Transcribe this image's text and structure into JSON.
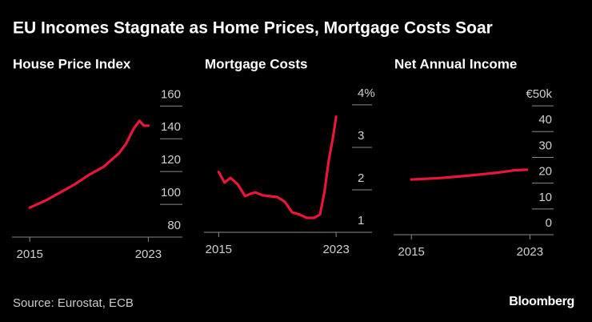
{
  "title": "EU Incomes Stagnate as Home Prices, Mortgage Costs Soar",
  "source": "Source: Eurostat, ECB",
  "brand": "Bloomberg",
  "chart_data": [
    {
      "type": "line",
      "title": "House Price Index",
      "x": [
        2015,
        2016,
        2017,
        2018,
        2019,
        2020,
        2021,
        2021.5,
        2022,
        2022.4,
        2022.7,
        2023
      ],
      "series": [
        {
          "name": "House Price Index",
          "color": "#e8173a",
          "values": [
            98,
            102,
            107,
            112,
            118,
            123,
            131,
            137,
            146,
            151,
            148,
            148
          ]
        }
      ],
      "xlim": [
        2013.8,
        2025.3
      ],
      "xticks": [
        2015,
        2023
      ],
      "ylim": [
        80,
        168
      ],
      "yticks": [
        80,
        100,
        120,
        140,
        160
      ]
    },
    {
      "type": "line",
      "title": "Mortgage Costs",
      "x": [
        2015,
        2015.4,
        2015.8,
        2016.3,
        2016.8,
        2017.1,
        2017.5,
        2018,
        2019,
        2019.5,
        2020,
        2020.5,
        2021,
        2021.5,
        2021.9,
        2022.2,
        2022.5,
        2022.8,
        2023
      ],
      "series": [
        {
          "name": "Mortgage Costs",
          "color": "#e8173a",
          "values": [
            2.42,
            2.17,
            2.28,
            2.13,
            1.85,
            1.9,
            1.94,
            1.87,
            1.83,
            1.72,
            1.47,
            1.42,
            1.34,
            1.34,
            1.42,
            1.94,
            2.7,
            3.26,
            3.72
          ]
        }
      ],
      "xlim": [
        2014,
        2024.9
      ],
      "xticks": [
        2015,
        2023
      ],
      "ylim": [
        1,
        4.3
      ],
      "yticks": [
        1,
        2,
        3,
        {
          "value": 4,
          "label": "4%"
        }
      ]
    },
    {
      "type": "line",
      "title": "Net Annual Income",
      "x": [
        2015,
        2016,
        2017,
        2018,
        2019,
        2020,
        2021,
        2022,
        2022.8
      ],
      "series": [
        {
          "name": "Net Annual Income",
          "color": "#e8173a",
          "values": [
            21.4,
            21.7,
            22,
            22.5,
            23,
            23.6,
            24.2,
            25,
            25.2
          ]
        }
      ],
      "xlim": [
        2013.8,
        2024.6
      ],
      "xticks": [
        2015,
        2023
      ],
      "ylim": [
        0,
        55
      ],
      "yticks": [
        0,
        10,
        20,
        30,
        40,
        {
          "value": 50,
          "label": "€50k"
        }
      ]
    }
  ]
}
